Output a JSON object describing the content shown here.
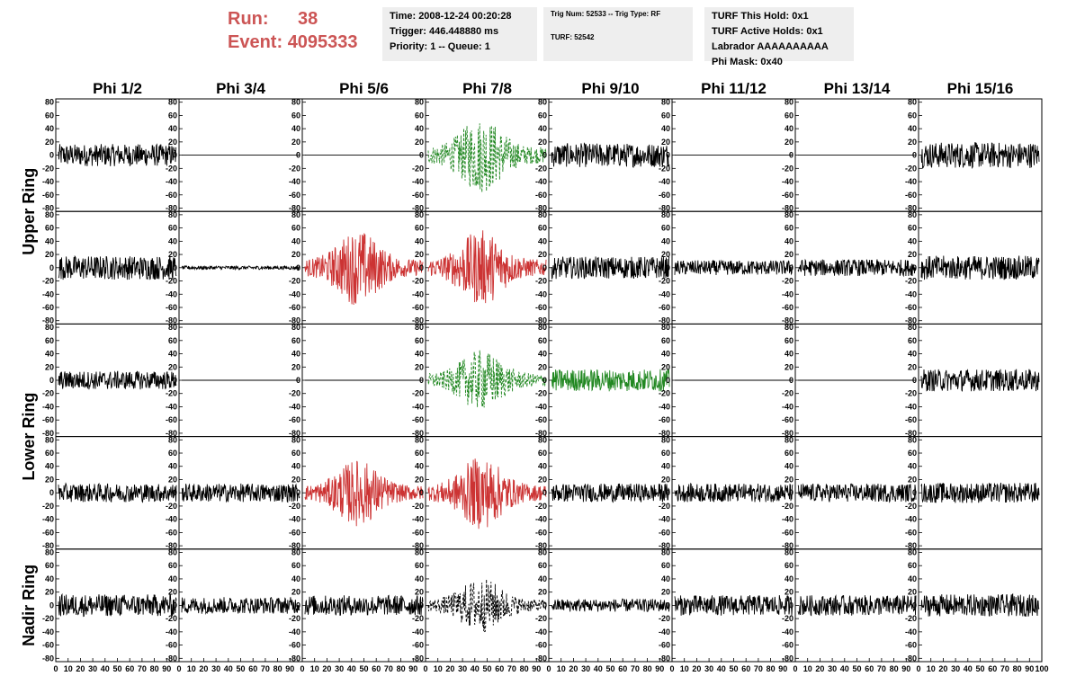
{
  "header": {
    "run_label": "Run:",
    "run_value": "38",
    "event_label": "Event:",
    "event_value": "4095333",
    "info1": [
      "Time: 2008-12-24 00:20:28",
      "Trigger: 446.448880 ms",
      "Priority: 1 -- Queue: 1"
    ],
    "info2": [
      "Trig Num: 52533 -- Trig Type: RF",
      "TURF: 52542"
    ],
    "info3": [
      "TURF This Hold: 0x1",
      "TURF Active Holds: 0x1",
      "Labrador AAAAAAAAAA",
      "Phi Mask: 0x40"
    ]
  },
  "chart_data": {
    "type": "line",
    "columns": [
      "Phi 1/2",
      "Phi 3/4",
      "Phi 5/6",
      "Phi 7/8",
      "Phi 9/10",
      "Phi 11/12",
      "Phi 13/14",
      "Phi 15/16"
    ],
    "ring_labels": [
      "Upper Ring",
      "Lower Ring",
      "Nadir Ring"
    ],
    "rows": 5,
    "ylim": [
      -85,
      85
    ],
    "yticks": [
      -80,
      -60,
      -40,
      -20,
      0,
      20,
      40,
      60,
      80
    ],
    "xlim": [
      0,
      100
    ],
    "xticks_per_panel": [
      "0",
      "10",
      "20",
      "30",
      "40",
      "50",
      "60",
      "70",
      "80",
      "90",
      "100"
    ],
    "colors": {
      "normal": "#000000",
      "triggered": "#cc3333",
      "green": "#228822"
    },
    "panels": [
      {
        "row": 0,
        "col": 0,
        "amp": 12,
        "style": "normal",
        "dash": false
      },
      {
        "row": 0,
        "col": 1,
        "amp": 0,
        "style": "normal",
        "dash": false
      },
      {
        "row": 0,
        "col": 2,
        "amp": 0,
        "style": "normal",
        "dash": false
      },
      {
        "row": 0,
        "col": 3,
        "amp": 25,
        "style": "green",
        "dash": true,
        "burst": true
      },
      {
        "row": 0,
        "col": 4,
        "amp": 13,
        "style": "normal",
        "dash": false
      },
      {
        "row": 0,
        "col": 5,
        "amp": 0,
        "style": "normal",
        "dash": false
      },
      {
        "row": 0,
        "col": 6,
        "amp": 0,
        "style": "normal",
        "dash": false
      },
      {
        "row": 0,
        "col": 7,
        "amp": 14,
        "style": "normal",
        "dash": false
      },
      {
        "row": 1,
        "col": 0,
        "amp": 13,
        "style": "normal",
        "dash": false
      },
      {
        "row": 1,
        "col": 1,
        "amp": 2,
        "style": "normal",
        "dash": false
      },
      {
        "row": 1,
        "col": 2,
        "amp": 25,
        "style": "triggered",
        "dash": false,
        "burst": true
      },
      {
        "row": 1,
        "col": 3,
        "amp": 25,
        "style": "triggered",
        "dash": false,
        "burst": true
      },
      {
        "row": 1,
        "col": 4,
        "amp": 12,
        "style": "normal",
        "dash": false
      },
      {
        "row": 1,
        "col": 5,
        "amp": 8,
        "style": "normal",
        "dash": false
      },
      {
        "row": 1,
        "col": 6,
        "amp": 9,
        "style": "normal",
        "dash": false
      },
      {
        "row": 1,
        "col": 7,
        "amp": 13,
        "style": "normal",
        "dash": false
      },
      {
        "row": 2,
        "col": 0,
        "amp": 10,
        "style": "normal",
        "dash": false
      },
      {
        "row": 2,
        "col": 1,
        "amp": 0,
        "style": "normal",
        "dash": false
      },
      {
        "row": 2,
        "col": 2,
        "amp": 0,
        "style": "normal",
        "dash": false
      },
      {
        "row": 2,
        "col": 3,
        "amp": 20,
        "style": "green",
        "dash": true,
        "burst": true
      },
      {
        "row": 2,
        "col": 4,
        "amp": 12,
        "style": "green",
        "dash": false
      },
      {
        "row": 2,
        "col": 5,
        "amp": 0,
        "style": "normal",
        "dash": false
      },
      {
        "row": 2,
        "col": 6,
        "amp": 0,
        "style": "normal",
        "dash": false
      },
      {
        "row": 2,
        "col": 7,
        "amp": 12,
        "style": "normal",
        "dash": false
      },
      {
        "row": 3,
        "col": 0,
        "amp": 10,
        "style": "normal",
        "dash": false
      },
      {
        "row": 3,
        "col": 1,
        "amp": 10,
        "style": "normal",
        "dash": false
      },
      {
        "row": 3,
        "col": 2,
        "amp": 22,
        "style": "triggered",
        "dash": false,
        "burst": true
      },
      {
        "row": 3,
        "col": 3,
        "amp": 24,
        "style": "triggered",
        "dash": false,
        "burst": true
      },
      {
        "row": 3,
        "col": 4,
        "amp": 10,
        "style": "normal",
        "dash": false
      },
      {
        "row": 3,
        "col": 5,
        "amp": 10,
        "style": "normal",
        "dash": false
      },
      {
        "row": 3,
        "col": 6,
        "amp": 10,
        "style": "normal",
        "dash": false
      },
      {
        "row": 3,
        "col": 7,
        "amp": 11,
        "style": "normal",
        "dash": false
      },
      {
        "row": 4,
        "col": 0,
        "amp": 12,
        "style": "normal",
        "dash": false
      },
      {
        "row": 4,
        "col": 1,
        "amp": 9,
        "style": "normal",
        "dash": false
      },
      {
        "row": 4,
        "col": 2,
        "amp": 11,
        "style": "normal",
        "dash": false
      },
      {
        "row": 4,
        "col": 3,
        "amp": 18,
        "style": "normal",
        "dash": true,
        "burst": true
      },
      {
        "row": 4,
        "col": 4,
        "amp": 7,
        "style": "normal",
        "dash": false
      },
      {
        "row": 4,
        "col": 5,
        "amp": 11,
        "style": "normal",
        "dash": false
      },
      {
        "row": 4,
        "col": 6,
        "amp": 11,
        "style": "normal",
        "dash": false
      },
      {
        "row": 4,
        "col": 7,
        "amp": 12,
        "style": "normal",
        "dash": false
      }
    ]
  }
}
